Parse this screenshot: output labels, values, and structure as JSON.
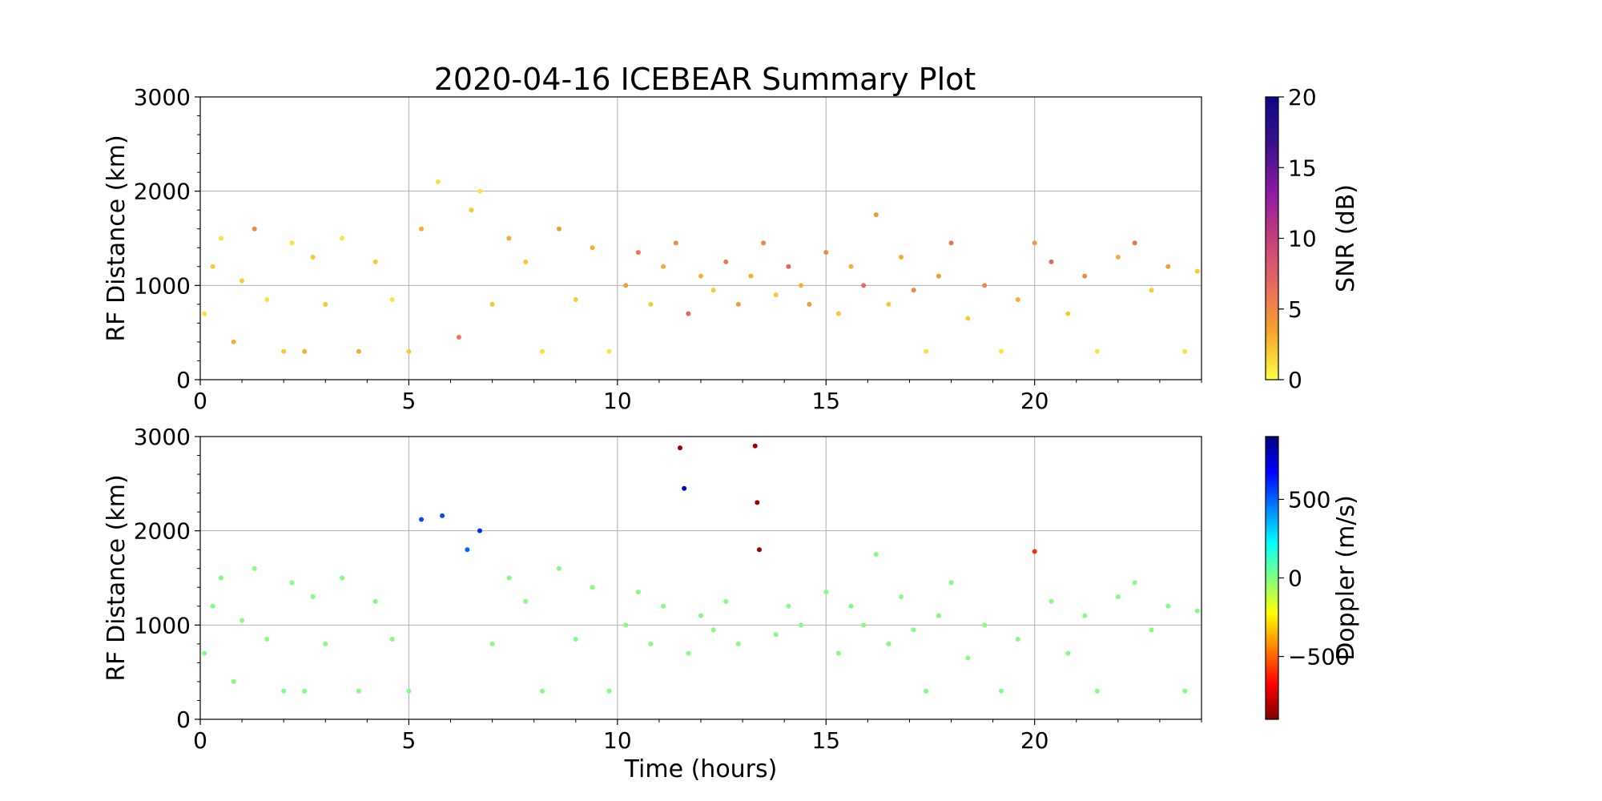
{
  "figure": {
    "title": "2020-04-16 ICEBEAR Summary Plot"
  },
  "chart_data": [
    {
      "type": "scatter",
      "color_variable": "SNR",
      "xlabel": "",
      "ylabel": "RF Distance (km)",
      "xlim": [
        0,
        24
      ],
      "ylim": [
        0,
        3000
      ],
      "xticks": [
        0,
        5,
        10,
        15,
        20
      ],
      "yticks": [
        0,
        1000,
        2000,
        3000
      ],
      "grid": true,
      "colorbar": {
        "label": "SNR (dB)",
        "range": [
          0,
          20
        ],
        "ticks": [
          0,
          5,
          10,
          15,
          20
        ],
        "colormap": [
          "#fcfe46",
          "#f6a52d",
          "#e76a5e",
          "#c5407c",
          "#8a1aa2",
          "#3b0f8c",
          "#0d0887"
        ]
      },
      "series": [
        {
          "x": [
            0.1,
            0.3,
            0.5,
            0.8,
            1.0,
            1.3,
            1.6,
            2.0,
            2.2,
            2.5,
            2.7,
            3.0,
            3.4,
            3.8,
            4.2,
            4.6,
            5.0,
            5.3,
            5.7,
            6.2,
            6.5,
            6.7,
            7.0,
            7.4,
            7.8,
            8.2,
            8.6,
            9.0,
            9.4,
            9.8,
            10.2,
            10.5,
            10.8,
            11.1,
            11.4,
            11.7,
            12.0,
            12.3,
            12.6,
            12.9,
            13.2,
            13.5,
            13.8,
            14.1,
            14.4,
            14.6,
            15.0,
            15.3,
            15.6,
            15.9,
            16.2,
            16.5,
            16.8,
            17.1,
            17.4,
            17.7,
            18.0,
            18.4,
            18.8,
            19.2,
            19.6,
            20.0,
            20.4,
            20.8,
            21.2,
            21.5,
            22.0,
            22.4,
            22.8,
            23.2,
            23.6,
            23.9
          ],
          "y": [
            700,
            1200,
            1500,
            400,
            1050,
            1600,
            850,
            300,
            1450,
            300,
            1300,
            800,
            1500,
            300,
            1250,
            850,
            300,
            1600,
            2100,
            450,
            1800,
            2000,
            800,
            1500,
            1250,
            300,
            1600,
            850,
            1400,
            300,
            1000,
            1350,
            800,
            1200,
            1450,
            700,
            1100,
            950,
            1250,
            800,
            1100,
            1450,
            900,
            1200,
            1000,
            800,
            1350,
            700,
            1200,
            1000,
            1750,
            800,
            1300,
            950,
            300,
            1100,
            1450,
            650,
            1000,
            300,
            850,
            1450,
            1250,
            700,
            1100,
            300,
            1300,
            1450,
            950,
            1200,
            300,
            1150
          ],
          "snr": [
            1,
            2,
            1,
            3,
            2,
            5,
            1,
            2,
            1,
            3,
            2,
            2,
            1,
            3,
            2,
            1,
            2,
            3,
            1,
            6,
            2,
            1,
            2,
            3,
            2,
            1,
            4,
            2,
            3,
            1,
            4,
            6,
            2,
            3,
            5,
            7,
            3,
            2,
            6,
            4,
            3,
            5,
            2,
            7,
            3,
            4,
            5,
            2,
            3,
            7,
            4,
            2,
            3,
            5,
            1,
            4,
            6,
            2,
            5,
            1,
            3,
            4,
            7,
            2,
            5,
            1,
            3,
            6,
            2,
            4,
            1,
            2
          ]
        }
      ]
    },
    {
      "type": "scatter",
      "color_variable": "Doppler",
      "xlabel": "Time (hours)",
      "ylabel": "RF Distance (km)",
      "xlim": [
        0,
        24
      ],
      "ylim": [
        0,
        3000
      ],
      "xticks": [
        0,
        5,
        10,
        15,
        20
      ],
      "yticks": [
        0,
        1000,
        2000,
        3000
      ],
      "grid": true,
      "colorbar": {
        "label": "Doppler (m/s)",
        "range": [
          -900,
          900
        ],
        "ticks": [
          -500,
          0,
          500
        ],
        "tick_labels": [
          "−500",
          "0",
          "500"
        ],
        "colormap": [
          "#7f0000",
          "#ff0000",
          "#ff8000",
          "#ffff00",
          "#80ff80",
          "#00ffff",
          "#0080ff",
          "#0000ff",
          "#00007f"
        ]
      },
      "series": [
        {
          "x": [
            0.1,
            0.3,
            0.5,
            0.8,
            1.0,
            1.3,
            1.6,
            2.0,
            2.2,
            2.5,
            2.7,
            3.0,
            3.4,
            3.8,
            4.2,
            4.6,
            5.0,
            5.3,
            5.8,
            6.4,
            6.7,
            7.0,
            7.4,
            7.8,
            8.2,
            8.6,
            9.0,
            9.4,
            9.8,
            10.2,
            10.5,
            10.8,
            11.1,
            11.5,
            11.6,
            11.7,
            12.0,
            12.3,
            12.6,
            12.9,
            13.3,
            13.35,
            13.4,
            13.8,
            14.1,
            14.4,
            15.0,
            15.3,
            15.6,
            15.9,
            16.2,
            16.5,
            16.8,
            17.1,
            17.4,
            17.7,
            18.0,
            18.4,
            18.8,
            19.2,
            19.6,
            20.0,
            20.4,
            20.8,
            21.2,
            21.5,
            22.0,
            22.4,
            22.8,
            23.2,
            23.6,
            23.9
          ],
          "y": [
            700,
            1200,
            1500,
            400,
            1050,
            1600,
            850,
            300,
            1450,
            300,
            1300,
            800,
            1500,
            300,
            1250,
            850,
            300,
            2120,
            2160,
            1800,
            2000,
            800,
            1500,
            1250,
            300,
            1600,
            850,
            1400,
            300,
            1000,
            1350,
            800,
            1200,
            2880,
            2450,
            700,
            1100,
            950,
            1250,
            800,
            2900,
            2300,
            1800,
            900,
            1200,
            1000,
            1350,
            700,
            1200,
            1000,
            1750,
            800,
            1300,
            950,
            300,
            1100,
            1450,
            650,
            1000,
            300,
            850,
            1780,
            1250,
            700,
            1100,
            300,
            1300,
            1450,
            950,
            1200,
            300,
            1150
          ],
          "doppler": [
            0,
            0,
            0,
            0,
            0,
            0,
            0,
            0,
            0,
            0,
            0,
            0,
            0,
            0,
            0,
            0,
            0,
            550,
            550,
            500,
            600,
            0,
            0,
            0,
            0,
            0,
            0,
            0,
            0,
            0,
            0,
            0,
            0,
            -850,
            800,
            0,
            0,
            0,
            0,
            0,
            -850,
            -850,
            -850,
            0,
            0,
            0,
            0,
            0,
            0,
            0,
            0,
            0,
            0,
            0,
            0,
            0,
            0,
            0,
            0,
            0,
            0,
            -600,
            0,
            0,
            0,
            0,
            0,
            0,
            0,
            0,
            0,
            0
          ]
        }
      ]
    }
  ]
}
